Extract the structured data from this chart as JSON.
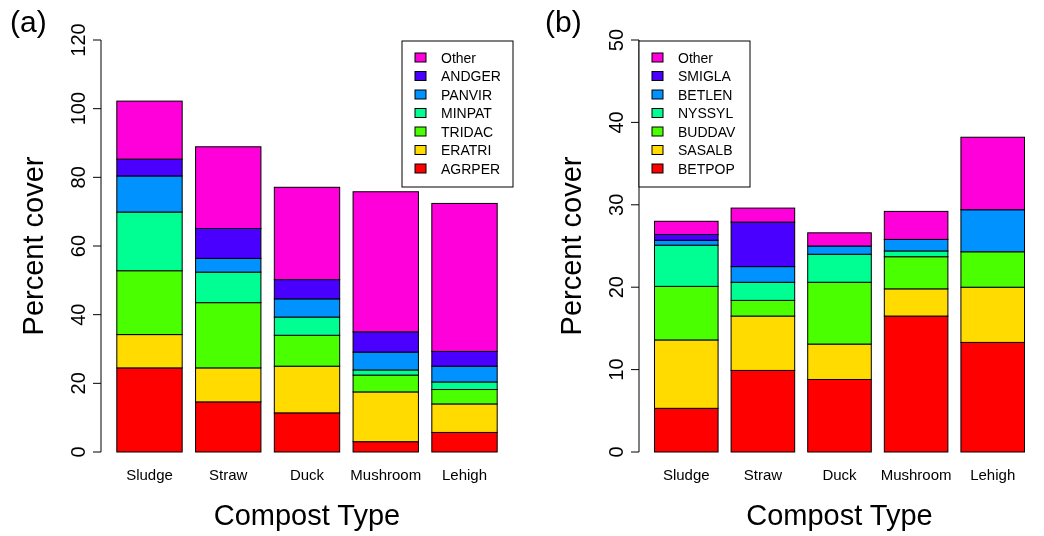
{
  "chart_data": [
    {
      "type": "bar",
      "title": "(a)",
      "xlabel": "Compost Type",
      "ylabel": "Percent cover",
      "stacked": true,
      "legend": "top right",
      "categories": [
        "Sludge",
        "Straw",
        "Duck",
        "Mushroom",
        "Lehigh"
      ],
      "ylim": [
        0,
        120
      ],
      "yticks": [
        0,
        20,
        40,
        60,
        80,
        100,
        120
      ],
      "series": [
        {
          "name": "AGRPER",
          "color": "#ff0000",
          "values": [
            24.5,
            14.6,
            11.4,
            3.0,
            5.7
          ]
        },
        {
          "name": "ERATRI",
          "color": "#ffdb00",
          "values": [
            9.7,
            9.9,
            13.6,
            14.5,
            8.3
          ]
        },
        {
          "name": "TRIDAC",
          "color": "#49ff00",
          "values": [
            18.6,
            19.0,
            9.0,
            4.9,
            4.2
          ]
        },
        {
          "name": "MINPAT",
          "color": "#00ff92",
          "values": [
            17.1,
            8.9,
            5.3,
            1.5,
            2.2
          ]
        },
        {
          "name": "PANVIR",
          "color": "#0092ff",
          "values": [
            10.5,
            4.0,
            5.3,
            5.2,
            4.6
          ]
        },
        {
          "name": "ANDGER",
          "color": "#4900ff",
          "values": [
            4.9,
            8.7,
            5.6,
            5.9,
            4.3
          ]
        },
        {
          "name": "Other",
          "color": "#ff00db",
          "values": [
            16.9,
            23.8,
            26.9,
            40.8,
            43.1
          ]
        }
      ]
    },
    {
      "type": "bar",
      "title": "(b)",
      "xlabel": "Compost Type",
      "ylabel": "Percent cover",
      "stacked": true,
      "legend": "top left",
      "categories": [
        "Sludge",
        "Straw",
        "Duck",
        "Mushroom",
        "Lehigh"
      ],
      "ylim": [
        0,
        50
      ],
      "yticks": [
        0,
        10,
        20,
        30,
        40,
        50
      ],
      "series": [
        {
          "name": "BETPOP",
          "color": "#ff0000",
          "values": [
            5.3,
            9.9,
            8.8,
            16.5,
            13.3
          ]
        },
        {
          "name": "SASALB",
          "color": "#ffdb00",
          "values": [
            8.3,
            6.6,
            4.3,
            3.3,
            6.7
          ]
        },
        {
          "name": "BUDDAV",
          "color": "#49ff00",
          "values": [
            6.5,
            1.9,
            7.5,
            3.9,
            4.3
          ]
        },
        {
          "name": "NYSSYL",
          "color": "#00ff92",
          "values": [
            5.0,
            2.2,
            3.4,
            0.7,
            null
          ]
        },
        {
          "name": "BETLEN",
          "color": "#0092ff",
          "values": [
            0.6,
            1.9,
            1.0,
            1.4,
            5.1
          ]
        },
        {
          "name": "SMIGLA",
          "color": "#4900ff",
          "values": [
            0.7,
            5.4,
            0,
            0,
            0
          ]
        },
        {
          "name": "Other",
          "color": "#ff00db",
          "values": [
            1.6,
            1.7,
            1.6,
            3.4,
            8.8
          ]
        }
      ]
    }
  ]
}
